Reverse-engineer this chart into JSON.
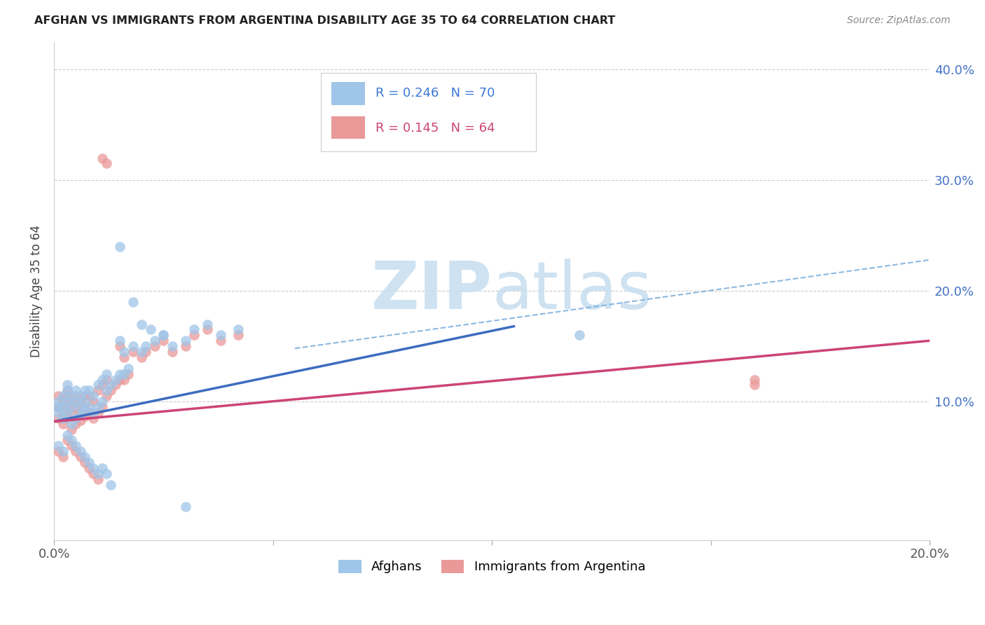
{
  "title": "AFGHAN VS IMMIGRANTS FROM ARGENTINA DISABILITY AGE 35 TO 64 CORRELATION CHART",
  "source": "Source: ZipAtlas.com",
  "ylabel": "Disability Age 35 to 64",
  "xlim": [
    0.0,
    0.2
  ],
  "ylim": [
    -0.025,
    0.425
  ],
  "r1": 0.246,
  "n1": 70,
  "r2": 0.145,
  "n2": 64,
  "color_blue": "#9fc5e8",
  "color_pink": "#ea9999",
  "line_blue": "#3d6cbf",
  "line_pink": "#cc4477",
  "line_dash": "#6fa8dc",
  "watermark_color": "#c9dff0",
  "legend1_label": "Afghans",
  "legend2_label": "Immigrants from Argentina",
  "blue_line_x": [
    0.0,
    0.105
  ],
  "blue_line_y": [
    0.082,
    0.168
  ],
  "pink_line_x": [
    0.0,
    0.2
  ],
  "pink_line_y": [
    0.082,
    0.155
  ],
  "dash_line_x": [
    0.055,
    0.2
  ],
  "dash_line_y": [
    0.148,
    0.228
  ],
  "afghans_x": [
    0.001,
    0.001,
    0.001,
    0.002,
    0.002,
    0.002,
    0.003,
    0.003,
    0.003,
    0.003,
    0.004,
    0.004,
    0.004,
    0.005,
    0.005,
    0.005,
    0.006,
    0.006,
    0.006,
    0.007,
    0.007,
    0.007,
    0.008,
    0.008,
    0.009,
    0.009,
    0.01,
    0.01,
    0.011,
    0.011,
    0.012,
    0.012,
    0.013,
    0.014,
    0.015,
    0.015,
    0.016,
    0.016,
    0.017,
    0.018,
    0.02,
    0.021,
    0.023,
    0.025,
    0.027,
    0.03,
    0.032,
    0.035,
    0.038,
    0.042,
    0.001,
    0.002,
    0.003,
    0.004,
    0.005,
    0.006,
    0.007,
    0.008,
    0.009,
    0.01,
    0.011,
    0.012,
    0.013,
    0.015,
    0.018,
    0.02,
    0.022,
    0.025,
    0.03,
    0.12
  ],
  "afghans_y": [
    0.09,
    0.095,
    0.1,
    0.085,
    0.095,
    0.105,
    0.09,
    0.1,
    0.11,
    0.115,
    0.08,
    0.095,
    0.105,
    0.085,
    0.1,
    0.11,
    0.088,
    0.095,
    0.105,
    0.092,
    0.1,
    0.11,
    0.095,
    0.11,
    0.09,
    0.105,
    0.095,
    0.115,
    0.1,
    0.12,
    0.11,
    0.125,
    0.115,
    0.12,
    0.125,
    0.155,
    0.125,
    0.145,
    0.13,
    0.15,
    0.145,
    0.15,
    0.155,
    0.16,
    0.15,
    0.155,
    0.165,
    0.17,
    0.16,
    0.165,
    0.06,
    0.055,
    0.07,
    0.065,
    0.06,
    0.055,
    0.05,
    0.045,
    0.04,
    0.035,
    0.04,
    0.035,
    0.025,
    0.24,
    0.19,
    0.17,
    0.165,
    0.16,
    0.005,
    0.16
  ],
  "argentina_x": [
    0.001,
    0.001,
    0.001,
    0.002,
    0.002,
    0.002,
    0.003,
    0.003,
    0.003,
    0.003,
    0.004,
    0.004,
    0.004,
    0.005,
    0.005,
    0.005,
    0.006,
    0.006,
    0.006,
    0.007,
    0.007,
    0.007,
    0.008,
    0.008,
    0.009,
    0.009,
    0.01,
    0.01,
    0.011,
    0.011,
    0.012,
    0.012,
    0.013,
    0.014,
    0.015,
    0.015,
    0.016,
    0.016,
    0.017,
    0.018,
    0.02,
    0.021,
    0.023,
    0.025,
    0.027,
    0.03,
    0.032,
    0.035,
    0.038,
    0.042,
    0.001,
    0.002,
    0.003,
    0.004,
    0.005,
    0.006,
    0.007,
    0.008,
    0.009,
    0.01,
    0.011,
    0.012,
    0.16,
    0.16
  ],
  "argentina_y": [
    0.085,
    0.095,
    0.105,
    0.08,
    0.09,
    0.1,
    0.085,
    0.095,
    0.105,
    0.11,
    0.075,
    0.09,
    0.1,
    0.08,
    0.095,
    0.105,
    0.083,
    0.09,
    0.1,
    0.087,
    0.095,
    0.105,
    0.09,
    0.105,
    0.085,
    0.1,
    0.09,
    0.11,
    0.095,
    0.115,
    0.105,
    0.12,
    0.11,
    0.115,
    0.12,
    0.15,
    0.12,
    0.14,
    0.125,
    0.145,
    0.14,
    0.145,
    0.15,
    0.155,
    0.145,
    0.15,
    0.16,
    0.165,
    0.155,
    0.16,
    0.055,
    0.05,
    0.065,
    0.06,
    0.055,
    0.05,
    0.045,
    0.04,
    0.035,
    0.03,
    0.32,
    0.315,
    0.12,
    0.115
  ]
}
